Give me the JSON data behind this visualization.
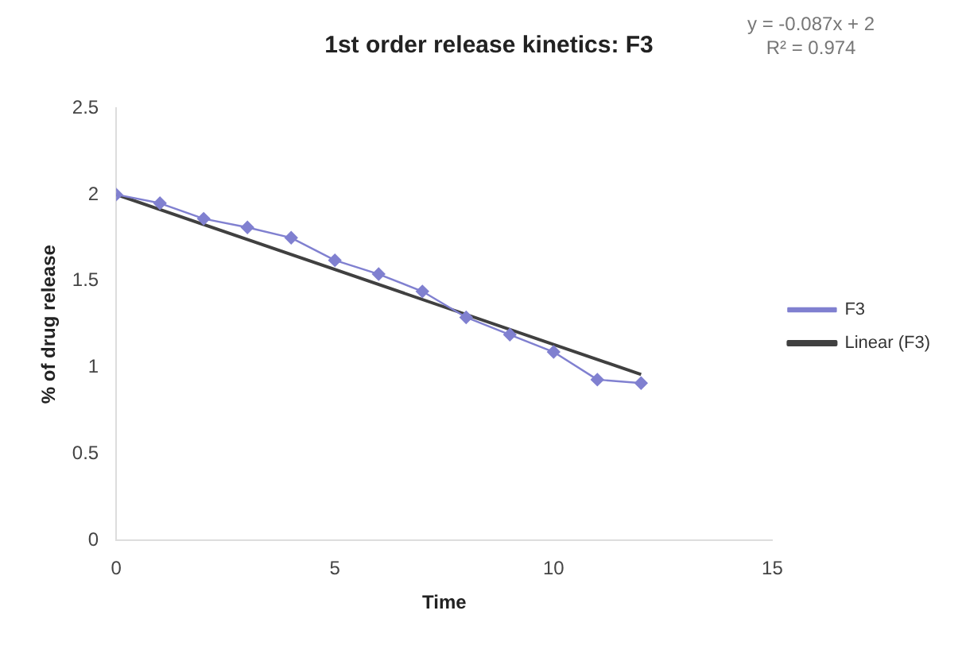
{
  "chart_data": {
    "type": "line",
    "title": "1st order release kinetics: F3",
    "xlabel": "Time",
    "ylabel": "% of drug release",
    "x": [
      0,
      1,
      2,
      3,
      4,
      5,
      6,
      7,
      8,
      9,
      10,
      11,
      12
    ],
    "series": [
      {
        "name": "F3",
        "color": "#8080d0",
        "values": [
          2.0,
          1.95,
          1.86,
          1.81,
          1.75,
          1.62,
          1.54,
          1.44,
          1.29,
          1.19,
          1.09,
          0.93,
          0.91
        ],
        "marker": "diamond"
      },
      {
        "name": "Linear (F3)",
        "type": "line",
        "color": "#404040",
        "x": [
          0,
          12
        ],
        "values": [
          2,
          0.96
        ],
        "marker": "none"
      }
    ],
    "xlim": [
      0,
      15
    ],
    "xticks": [
      0,
      5,
      10,
      15
    ],
    "ylim": [
      0,
      2.5
    ],
    "yticks": [
      0,
      0.5,
      1,
      1.5,
      2,
      2.5
    ],
    "grid": false,
    "legend": "right",
    "annotations": [
      "y = -0.087x + 2",
      "R² = 0.974"
    ]
  }
}
